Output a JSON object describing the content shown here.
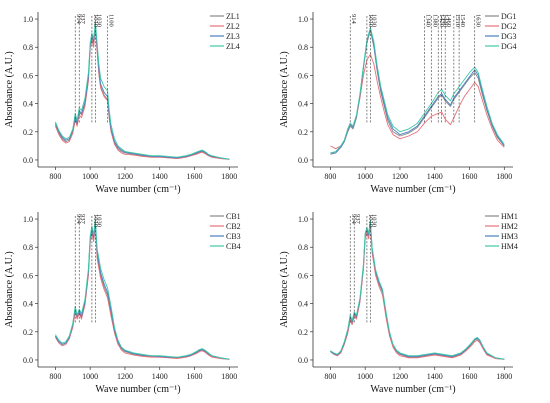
{
  "chart_data": [
    {
      "type": "line",
      "xlabel": "Wave number (cm⁻¹)",
      "ylabel": "Absorbance (A.U.)",
      "xlim": [
        700,
        1850
      ],
      "ylim": [
        -0.05,
        1.05
      ],
      "xticks": [
        800,
        1000,
        1200,
        1400,
        1600,
        1800
      ],
      "yticks": [
        0.0,
        0.2,
        0.4,
        0.6,
        0.8,
        1.0
      ],
      "legend_position": "top-right",
      "peaks": [
        {
          "x": 914,
          "label": "914"
        },
        {
          "x": 937,
          "label": "937"
        },
        {
          "x": 1010,
          "label": "1010"
        },
        {
          "x": 1030,
          "label": "1030"
        },
        {
          "x": 1100,
          "label": "1100"
        }
      ],
      "x": [
        800,
        820,
        840,
        860,
        880,
        900,
        914,
        925,
        937,
        950,
        970,
        990,
        1000,
        1010,
        1020,
        1030,
        1040,
        1050,
        1060,
        1080,
        1100,
        1110,
        1120,
        1140,
        1160,
        1180,
        1200,
        1250,
        1300,
        1350,
        1400,
        1450,
        1500,
        1550,
        1580,
        1610,
        1630,
        1645,
        1660,
        1680,
        1700,
        1750,
        1800
      ],
      "series": [
        {
          "name": "ZL1",
          "color": "#888888",
          "values": [
            0.25,
            0.19,
            0.15,
            0.13,
            0.14,
            0.2,
            0.3,
            0.25,
            0.34,
            0.32,
            0.4,
            0.58,
            0.8,
            0.86,
            0.82,
            0.95,
            0.78,
            0.62,
            0.52,
            0.46,
            0.43,
            0.3,
            0.21,
            0.12,
            0.08,
            0.06,
            0.05,
            0.04,
            0.03,
            0.02,
            0.02,
            0.015,
            0.01,
            0.02,
            0.03,
            0.045,
            0.055,
            0.06,
            0.05,
            0.03,
            0.02,
            0.01,
            0.005
          ]
        },
        {
          "name": "ZL2",
          "color": "#e8707a",
          "values": [
            0.24,
            0.18,
            0.14,
            0.12,
            0.13,
            0.19,
            0.28,
            0.24,
            0.32,
            0.3,
            0.38,
            0.56,
            0.79,
            0.85,
            0.8,
            0.94,
            0.77,
            0.61,
            0.51,
            0.45,
            0.42,
            0.29,
            0.2,
            0.11,
            0.07,
            0.05,
            0.04,
            0.035,
            0.025,
            0.02,
            0.02,
            0.015,
            0.01,
            0.02,
            0.03,
            0.04,
            0.05,
            0.055,
            0.045,
            0.03,
            0.02,
            0.01,
            0.005
          ]
        },
        {
          "name": "ZL3",
          "color": "#4a7fc1",
          "values": [
            0.26,
            0.2,
            0.16,
            0.14,
            0.15,
            0.21,
            0.31,
            0.26,
            0.35,
            0.33,
            0.41,
            0.59,
            0.81,
            0.88,
            0.84,
            0.97,
            0.8,
            0.64,
            0.54,
            0.48,
            0.45,
            0.31,
            0.22,
            0.13,
            0.09,
            0.07,
            0.055,
            0.045,
            0.035,
            0.025,
            0.025,
            0.02,
            0.015,
            0.025,
            0.035,
            0.05,
            0.06,
            0.065,
            0.055,
            0.035,
            0.025,
            0.015,
            0.005
          ]
        },
        {
          "name": "ZL4",
          "color": "#3fc9a8",
          "values": [
            0.27,
            0.21,
            0.17,
            0.15,
            0.16,
            0.22,
            0.33,
            0.28,
            0.37,
            0.35,
            0.44,
            0.62,
            0.83,
            0.9,
            0.86,
            0.98,
            0.83,
            0.68,
            0.58,
            0.52,
            0.49,
            0.35,
            0.25,
            0.15,
            0.1,
            0.08,
            0.06,
            0.05,
            0.04,
            0.03,
            0.03,
            0.025,
            0.02,
            0.03,
            0.04,
            0.055,
            0.065,
            0.07,
            0.06,
            0.04,
            0.03,
            0.015,
            0.005
          ]
        }
      ]
    },
    {
      "type": "line",
      "xlabel": "Wave number (cm⁻¹)",
      "ylabel": "Absorbance (A.U.)",
      "xlim": [
        700,
        1850
      ],
      "ylim": [
        -0.05,
        1.05
      ],
      "xticks": [
        800,
        1000,
        1200,
        1400,
        1600,
        1800
      ],
      "yticks": [
        0.0,
        0.2,
        0.4,
        0.6,
        0.8,
        1.0
      ],
      "legend_position": "top-right",
      "peaks": [
        {
          "x": 914,
          "label": "914"
        },
        {
          "x": 1010,
          "label": "1010"
        },
        {
          "x": 1030,
          "label": "1030"
        },
        {
          "x": 1340,
          "label": "1340"
        },
        {
          "x": 1380,
          "label": "1380"
        },
        {
          "x": 1420,
          "label": "1420"
        },
        {
          "x": 1440,
          "label": "1440"
        },
        {
          "x": 1460,
          "label": "1460"
        },
        {
          "x": 1510,
          "label": "1510"
        },
        {
          "x": 1540,
          "label": "1540"
        },
        {
          "x": 1630,
          "label": "1630"
        }
      ],
      "x": [
        800,
        830,
        860,
        880,
        900,
        914,
        930,
        950,
        970,
        990,
        1010,
        1030,
        1050,
        1070,
        1090,
        1110,
        1130,
        1160,
        1200,
        1250,
        1300,
        1340,
        1380,
        1420,
        1440,
        1460,
        1490,
        1510,
        1540,
        1570,
        1600,
        1630,
        1650,
        1670,
        1700,
        1730,
        1760,
        1800
      ],
      "series": [
        {
          "name": "DG1",
          "color": "#888888",
          "values": [
            0.04,
            0.05,
            0.09,
            0.13,
            0.2,
            0.24,
            0.22,
            0.3,
            0.45,
            0.65,
            0.83,
            0.92,
            0.8,
            0.62,
            0.48,
            0.38,
            0.28,
            0.2,
            0.17,
            0.19,
            0.23,
            0.3,
            0.37,
            0.44,
            0.46,
            0.42,
            0.38,
            0.43,
            0.48,
            0.53,
            0.58,
            0.62,
            0.58,
            0.48,
            0.35,
            0.24,
            0.16,
            0.1
          ]
        },
        {
          "name": "DG2",
          "color": "#e8707a",
          "values": [
            0.1,
            0.08,
            0.1,
            0.14,
            0.22,
            0.26,
            0.24,
            0.31,
            0.44,
            0.6,
            0.71,
            0.75,
            0.68,
            0.55,
            0.44,
            0.34,
            0.25,
            0.18,
            0.15,
            0.17,
            0.2,
            0.26,
            0.31,
            0.33,
            0.34,
            0.29,
            0.25,
            0.3,
            0.38,
            0.45,
            0.5,
            0.55,
            0.52,
            0.44,
            0.32,
            0.22,
            0.14,
            0.09
          ]
        },
        {
          "name": "DG3",
          "color": "#4a7fc1",
          "values": [
            0.05,
            0.05,
            0.09,
            0.13,
            0.21,
            0.25,
            0.23,
            0.31,
            0.46,
            0.66,
            0.84,
            0.93,
            0.82,
            0.64,
            0.5,
            0.4,
            0.3,
            0.22,
            0.18,
            0.2,
            0.24,
            0.31,
            0.38,
            0.45,
            0.47,
            0.43,
            0.39,
            0.44,
            0.49,
            0.54,
            0.59,
            0.64,
            0.6,
            0.5,
            0.36,
            0.25,
            0.17,
            0.1
          ]
        },
        {
          "name": "DG4",
          "color": "#3fc9a8",
          "values": [
            0.05,
            0.06,
            0.1,
            0.14,
            0.22,
            0.26,
            0.24,
            0.32,
            0.47,
            0.67,
            0.85,
            0.94,
            0.84,
            0.66,
            0.52,
            0.42,
            0.32,
            0.24,
            0.2,
            0.22,
            0.26,
            0.33,
            0.4,
            0.48,
            0.5,
            0.46,
            0.42,
            0.47,
            0.52,
            0.57,
            0.62,
            0.66,
            0.62,
            0.52,
            0.38,
            0.26,
            0.18,
            0.11
          ]
        }
      ]
    },
    {
      "type": "line",
      "xlabel": "Wave number (cm⁻¹)",
      "ylabel": "Absorbance (A.U.)",
      "xlim": [
        700,
        1850
      ],
      "ylim": [
        -0.05,
        1.05
      ],
      "xticks": [
        800,
        1000,
        1200,
        1400,
        1600,
        1800
      ],
      "yticks": [
        0.0,
        0.2,
        0.4,
        0.6,
        0.8,
        1.0
      ],
      "legend_position": "top-right",
      "peaks": [
        {
          "x": 914,
          "label": "914"
        },
        {
          "x": 937,
          "label": "937"
        },
        {
          "x": 1010,
          "label": "1010"
        },
        {
          "x": 1030,
          "label": "1030"
        }
      ],
      "x": [
        800,
        820,
        840,
        860,
        880,
        900,
        914,
        925,
        937,
        950,
        970,
        990,
        1000,
        1010,
        1020,
        1030,
        1040,
        1060,
        1080,
        1100,
        1120,
        1140,
        1160,
        1180,
        1200,
        1250,
        1300,
        1350,
        1400,
        1450,
        1500,
        1550,
        1580,
        1610,
        1630,
        1645,
        1660,
        1680,
        1700,
        1750,
        1800
      ],
      "series": [
        {
          "name": "CB1",
          "color": "#888888",
          "values": [
            0.17,
            0.13,
            0.11,
            0.12,
            0.16,
            0.24,
            0.36,
            0.3,
            0.34,
            0.3,
            0.4,
            0.62,
            0.85,
            0.92,
            0.86,
            0.97,
            0.74,
            0.6,
            0.52,
            0.46,
            0.33,
            0.2,
            0.12,
            0.08,
            0.06,
            0.04,
            0.03,
            0.025,
            0.02,
            0.02,
            0.015,
            0.02,
            0.03,
            0.05,
            0.065,
            0.07,
            0.06,
            0.04,
            0.025,
            0.01,
            0.005
          ]
        },
        {
          "name": "CB2",
          "color": "#e8707a",
          "values": [
            0.16,
            0.12,
            0.1,
            0.11,
            0.15,
            0.23,
            0.34,
            0.29,
            0.33,
            0.29,
            0.39,
            0.6,
            0.83,
            0.9,
            0.84,
            0.95,
            0.72,
            0.58,
            0.5,
            0.44,
            0.31,
            0.19,
            0.11,
            0.07,
            0.05,
            0.035,
            0.025,
            0.02,
            0.02,
            0.015,
            0.01,
            0.02,
            0.03,
            0.045,
            0.06,
            0.065,
            0.055,
            0.035,
            0.02,
            0.01,
            0.005
          ]
        },
        {
          "name": "CB3",
          "color": "#4a7fc1",
          "values": [
            0.17,
            0.13,
            0.11,
            0.12,
            0.16,
            0.25,
            0.37,
            0.31,
            0.35,
            0.31,
            0.41,
            0.63,
            0.86,
            0.93,
            0.87,
            0.98,
            0.76,
            0.62,
            0.54,
            0.48,
            0.35,
            0.21,
            0.13,
            0.085,
            0.065,
            0.045,
            0.035,
            0.03,
            0.025,
            0.02,
            0.02,
            0.025,
            0.035,
            0.055,
            0.07,
            0.075,
            0.065,
            0.045,
            0.03,
            0.015,
            0.005
          ]
        },
        {
          "name": "CB4",
          "color": "#3fc9a8",
          "values": [
            0.18,
            0.14,
            0.12,
            0.13,
            0.17,
            0.26,
            0.38,
            0.32,
            0.36,
            0.33,
            0.43,
            0.65,
            0.88,
            0.95,
            0.89,
            1.0,
            0.79,
            0.65,
            0.57,
            0.51,
            0.38,
            0.23,
            0.14,
            0.09,
            0.07,
            0.05,
            0.04,
            0.03,
            0.03,
            0.025,
            0.02,
            0.03,
            0.04,
            0.06,
            0.075,
            0.08,
            0.07,
            0.05,
            0.03,
            0.015,
            0.005
          ]
        }
      ]
    },
    {
      "type": "line",
      "xlabel": "Wave number (cm⁻¹)",
      "ylabel": "Absorbance (A.U.)",
      "xlim": [
        700,
        1850
      ],
      "ylim": [
        -0.05,
        1.05
      ],
      "xticks": [
        800,
        1000,
        1200,
        1400,
        1600,
        1800
      ],
      "yticks": [
        0.0,
        0.2,
        0.4,
        0.6,
        0.8,
        1.0
      ],
      "legend_position": "top-right",
      "peaks": [
        {
          "x": 914,
          "label": "914"
        },
        {
          "x": 937,
          "label": "937"
        },
        {
          "x": 1010,
          "label": "1010"
        },
        {
          "x": 1030,
          "label": "1030"
        }
      ],
      "x": [
        800,
        820,
        840,
        860,
        880,
        900,
        914,
        925,
        937,
        950,
        970,
        990,
        1000,
        1010,
        1020,
        1030,
        1040,
        1060,
        1080,
        1100,
        1120,
        1140,
        1160,
        1180,
        1200,
        1250,
        1300,
        1350,
        1400,
        1450,
        1500,
        1550,
        1580,
        1610,
        1630,
        1645,
        1660,
        1680,
        1700,
        1750,
        1800
      ],
      "series": [
        {
          "name": "HM1",
          "color": "#888888",
          "values": [
            0.06,
            0.04,
            0.03,
            0.06,
            0.12,
            0.2,
            0.3,
            0.26,
            0.32,
            0.3,
            0.42,
            0.66,
            0.88,
            0.92,
            0.88,
            0.97,
            0.78,
            0.62,
            0.54,
            0.48,
            0.32,
            0.18,
            0.1,
            0.06,
            0.04,
            0.02,
            0.02,
            0.03,
            0.04,
            0.03,
            0.02,
            0.04,
            0.07,
            0.11,
            0.14,
            0.15,
            0.13,
            0.08,
            0.04,
            0.01,
            0.005
          ]
        },
        {
          "name": "HM2",
          "color": "#e8707a",
          "values": [
            0.06,
            0.04,
            0.03,
            0.05,
            0.11,
            0.19,
            0.28,
            0.25,
            0.31,
            0.29,
            0.41,
            0.64,
            0.86,
            0.9,
            0.86,
            0.95,
            0.76,
            0.6,
            0.52,
            0.46,
            0.3,
            0.17,
            0.09,
            0.05,
            0.03,
            0.015,
            0.015,
            0.025,
            0.035,
            0.025,
            0.015,
            0.035,
            0.065,
            0.1,
            0.13,
            0.14,
            0.12,
            0.075,
            0.035,
            0.01,
            0.005
          ]
        },
        {
          "name": "HM3",
          "color": "#4a7fc1",
          "values": [
            0.06,
            0.045,
            0.035,
            0.06,
            0.12,
            0.21,
            0.31,
            0.27,
            0.33,
            0.31,
            0.43,
            0.67,
            0.89,
            0.93,
            0.89,
            0.98,
            0.79,
            0.63,
            0.55,
            0.49,
            0.33,
            0.19,
            0.11,
            0.065,
            0.045,
            0.025,
            0.025,
            0.035,
            0.045,
            0.035,
            0.025,
            0.045,
            0.075,
            0.115,
            0.145,
            0.155,
            0.135,
            0.085,
            0.045,
            0.015,
            0.005
          ]
        },
        {
          "name": "HM4",
          "color": "#3fc9a8",
          "values": [
            0.065,
            0.05,
            0.04,
            0.065,
            0.13,
            0.22,
            0.32,
            0.28,
            0.34,
            0.32,
            0.44,
            0.68,
            0.9,
            0.94,
            0.9,
            0.99,
            0.8,
            0.64,
            0.56,
            0.5,
            0.34,
            0.2,
            0.11,
            0.07,
            0.05,
            0.03,
            0.03,
            0.04,
            0.05,
            0.04,
            0.03,
            0.05,
            0.08,
            0.12,
            0.15,
            0.16,
            0.14,
            0.09,
            0.05,
            0.015,
            0.005
          ]
        }
      ]
    }
  ]
}
